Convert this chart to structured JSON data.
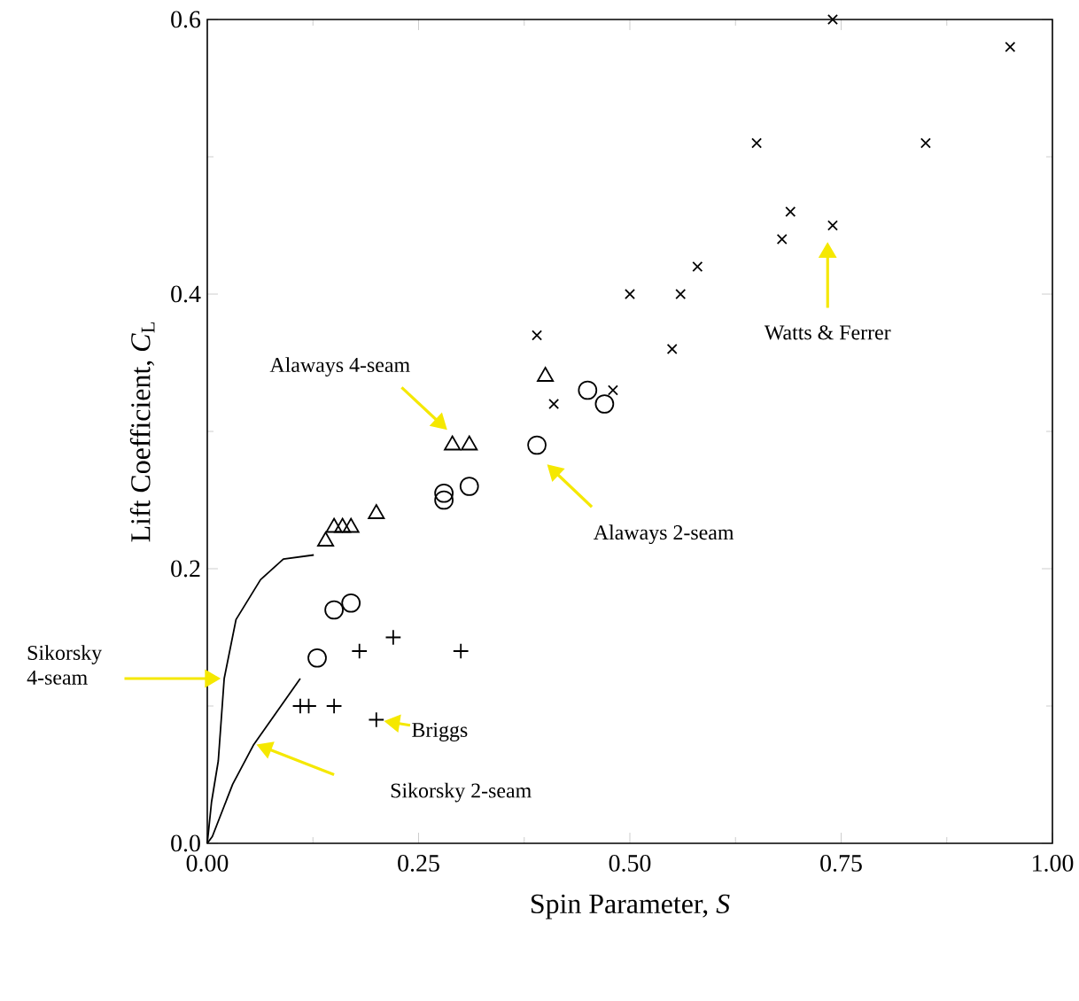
{
  "chart_data": {
    "type": "scatter",
    "xlabel": "Spin Parameter, *S*",
    "ylabel": "Lift Coefficient, *C*$_{L}$",
    "xlim": [
      0,
      1
    ],
    "ylim": [
      0,
      0.6
    ],
    "xticks": [
      {
        "value": 0,
        "label": "0.00"
      },
      {
        "value": 0.25,
        "label": "0.25"
      },
      {
        "value": 0.5,
        "label": "0.50"
      },
      {
        "value": 0.75,
        "label": "0.75"
      },
      {
        "value": 1,
        "label": "1.00"
      }
    ],
    "yticks": [
      {
        "value": 0,
        "label": "0.0"
      },
      {
        "value": 0.2,
        "label": "0.2"
      },
      {
        "value": 0.4,
        "label": "0.4"
      },
      {
        "value": 0.6,
        "label": "0.6"
      }
    ],
    "annotations": [
      "Watts & Ferrer",
      {
        "text": "Alaways 4-seam",
        "x": 0.284,
        "y": 0.301
      },
      "Alaways 2-seam",
      {
        "text": "Sikorsky 4-seam",
        "x": 0.016,
        "y": 0.12
      },
      {
        "text": "Briggs",
        "x": 0.209,
        "y": 0.089
      },
      "Sikorsky 2-seam"
    ],
    "series": [
      {
        "marker": "cross",
        "color": "#000000",
        "x": [
          0.74,
          0.95,
          0.65,
          0.85,
          0.69,
          0.74,
          0.68,
          0.58,
          0.5,
          0.56,
          0.55,
          0.39,
          0.48,
          0.41
        ],
        "values": [
          0.6,
          0.58,
          0.51,
          0.51,
          0.46,
          0.45,
          0.44,
          0.42,
          0.4,
          0.4,
          0.36,
          0.37,
          0.33,
          0.32
        ]
      },
      {
        "marker": "triangle",
        "color": "#000000",
        "x": [
          0.4,
          0.29,
          0.31,
          0.14,
          0.15,
          0.16,
          0.17,
          0.2
        ],
        "values": [
          0.34,
          0.29,
          0.29,
          0.22,
          0.23,
          0.23,
          0.23,
          0.24
        ]
      },
      {
        "marker": "circle",
        "color": "#000000",
        "x": [
          0.45,
          0.47,
          0.39,
          0.28,
          0.28,
          0.31,
          0.15,
          0.17,
          0.13
        ],
        "values": [
          0.33,
          0.32,
          0.29,
          0.255,
          0.25,
          0.26,
          0.17,
          0.175,
          0.135
        ]
      },
      {
        "marker": "plus",
        "color": "#000000",
        "x": [
          0.18,
          0.22,
          0.3,
          0.11,
          0.12,
          0.15,
          0.2
        ],
        "values": [
          0.14,
          0.15,
          0.14,
          0.1,
          0.1,
          0.1,
          0.09
        ]
      },
      {
        "type": "line",
        "marker": "none",
        "color": "#000000",
        "x": [
          0,
          0.005,
          0.013,
          0.02,
          0.034,
          0.063,
          0.09,
          0.126
        ],
        "values": [
          0,
          0.03,
          0.06,
          0.12,
          0.163,
          0.192,
          0.207,
          0.21
        ]
      },
      {
        "type": "line",
        "marker": "none",
        "color": "#000000",
        "x": [
          0,
          0.006,
          0.03,
          0.055,
          0.11
        ],
        "values": [
          0,
          0.005,
          0.043,
          0.072,
          0.12
        ]
      }
    ]
  }
}
